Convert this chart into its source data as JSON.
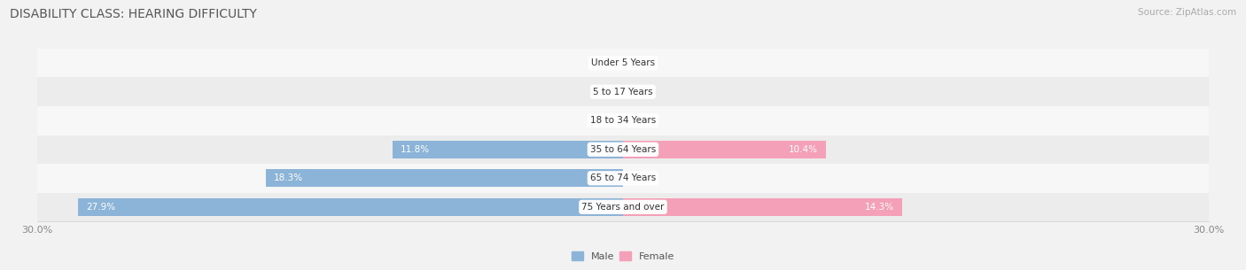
{
  "title": "DISABILITY CLASS: HEARING DIFFICULTY",
  "source": "Source: ZipAtlas.com",
  "categories": [
    "Under 5 Years",
    "5 to 17 Years",
    "18 to 34 Years",
    "35 to 64 Years",
    "65 to 74 Years",
    "75 Years and over"
  ],
  "male_values": [
    0.0,
    0.0,
    0.0,
    11.8,
    18.3,
    27.9
  ],
  "female_values": [
    0.0,
    0.0,
    0.0,
    10.4,
    0.0,
    14.3
  ],
  "xlim": 30.0,
  "male_color": "#8cb4d8",
  "female_color": "#f4a0b8",
  "bar_height": 0.62,
  "row_colors": [
    "#f7f7f7",
    "#ececec"
  ],
  "title_fontsize": 10,
  "source_fontsize": 7.5,
  "tick_fontsize": 8,
  "label_fontsize": 7.5,
  "cat_fontsize": 7.5,
  "legend_fontsize": 8
}
